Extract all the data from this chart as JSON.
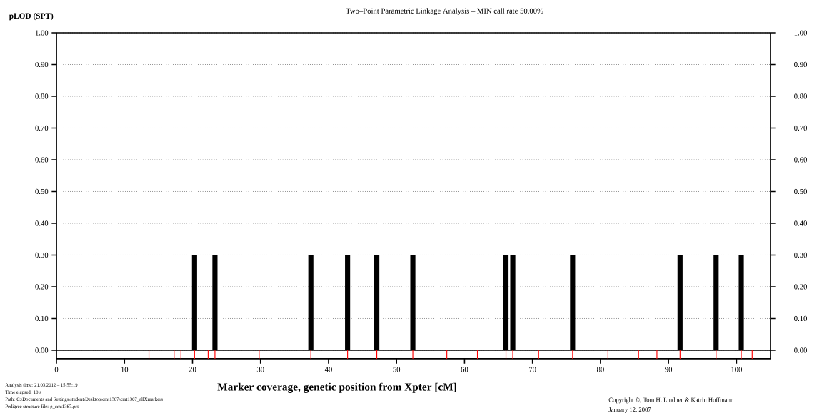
{
  "chart_data": {
    "type": "bar",
    "title": "Two–Point Parametric Linkage Analysis – MIN call rate 50.00%",
    "xlabel": "Marker coverage, genetic position from Xpter [cM]",
    "ylabel": "pLOD (SPT)",
    "series": [
      {
        "color": "#000000",
        "x": [
          20.3,
          23.3,
          37.4,
          42.8,
          47.1,
          52.4,
          66.1,
          67.1,
          75.9,
          91.7,
          97.0,
          100.7
        ],
        "values": [
          0.3,
          0.3,
          0.3,
          0.3,
          0.3,
          0.3,
          0.3,
          0.3,
          0.3,
          0.3,
          0.3,
          0.3
        ]
      },
      {
        "color": "#ff0000",
        "x": [
          13.6,
          17.3,
          18.3,
          20.3,
          22.3,
          23.3,
          29.8,
          37.4,
          42.8,
          47.1,
          52.4,
          57.4,
          61.9,
          66.1,
          67.1,
          70.9,
          75.9,
          81.1,
          85.6,
          88.3,
          91.7,
          97.0,
          100.7,
          102.3
        ],
        "base": [
          -0.027,
          -0.027,
          -0.027,
          -0.027,
          -0.027,
          -0.027,
          -0.027,
          -0.027,
          -0.027,
          -0.027,
          -0.027,
          -0.027,
          -0.027,
          -0.027,
          -0.027,
          -0.027,
          -0.027,
          -0.027,
          -0.027,
          -0.027,
          -0.027,
          -0.027,
          -0.027,
          -0.027
        ],
        "values": [
          0.027,
          0.027,
          0.027,
          0.027,
          0.027,
          0.027,
          0.027,
          0.027,
          0.027,
          0.027,
          0.027,
          0.027,
          0.027,
          0.027,
          0.027,
          0.027,
          0.027,
          0.027,
          0.027,
          0.027,
          0.027,
          0.027,
          0.027,
          0.027
        ]
      }
    ],
    "xlim": [
      0,
      105
    ],
    "xticks": [
      0,
      10,
      20,
      30,
      40,
      50,
      60,
      70,
      80,
      90,
      100
    ],
    "ylim": [
      -0.027,
      1.0
    ],
    "yticks": [
      {
        "value": 0,
        "label": "0.00"
      },
      {
        "value": 0.1,
        "label": "0.10"
      },
      {
        "value": 0.2,
        "label": "0.20"
      },
      {
        "value": 0.3,
        "label": "0.30"
      },
      {
        "value": 0.4,
        "label": "0.40"
      },
      {
        "value": 0.5,
        "label": "0.50"
      },
      {
        "value": 0.6,
        "label": "0.60"
      },
      {
        "value": 0.7,
        "label": "0.70"
      },
      {
        "value": 0.8,
        "label": "0.80"
      },
      {
        "value": 0.9,
        "label": "0.90"
      },
      {
        "value": 1.0,
        "label": "1.00"
      }
    ],
    "y2lim": [
      -0.027,
      1.0
    ],
    "y2ticks": [
      {
        "value": 0,
        "label": "0.00"
      },
      {
        "value": 0.1,
        "label": "0.10"
      },
      {
        "value": 0.2,
        "label": "0.20"
      },
      {
        "value": 0.3,
        "label": "0.30"
      },
      {
        "value": 0.4,
        "label": "0.40"
      },
      {
        "value": 0.5,
        "label": "0.50"
      },
      {
        "value": 0.6,
        "label": "0.60"
      },
      {
        "value": 0.7,
        "label": "0.70"
      },
      {
        "value": 0.8,
        "label": "0.80"
      },
      {
        "value": 0.9,
        "label": "0.90"
      },
      {
        "value": 1.0,
        "label": "1.00"
      }
    ],
    "grid": "y",
    "annotations": [
      "Analysis time: 21.03.2012 – 15:55:19",
      "Time elapsed: 10 s",
      "Path: C:\\Documents and Settings\\student\\Desktop\\cmt1367\\cmt1367_allXmarkers",
      "Pedigree structure file: p_cmt1367.pro",
      "Copyright ©, Tom H. Lindner & Katrin Hoffmann",
      "January 12, 2007"
    ]
  }
}
